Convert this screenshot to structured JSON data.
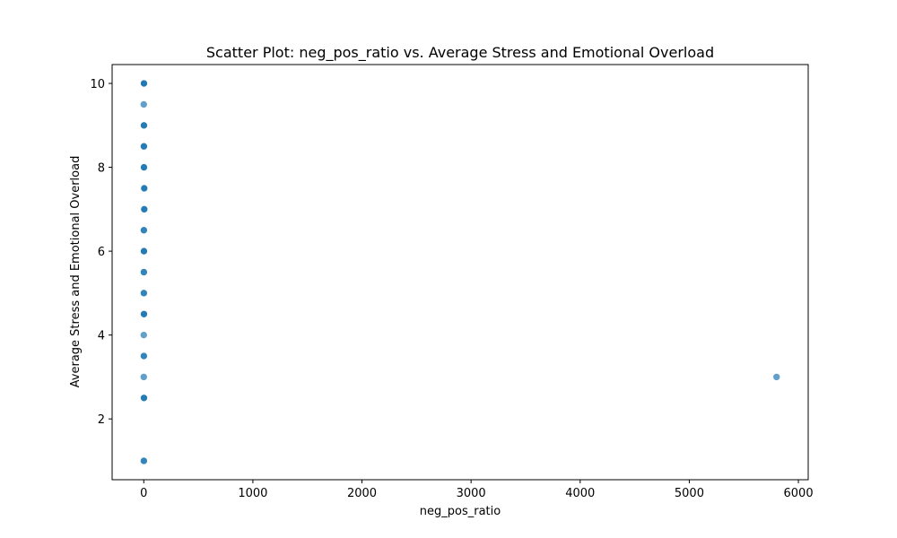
{
  "chart_data": {
    "type": "scatter",
    "title": "Scatter Plot: neg_pos_ratio vs. Average Stress and Emotional Overload",
    "xlabel": "neg_pos_ratio",
    "ylabel": "Average Stress and Emotional Overload",
    "xlim": [
      -290,
      6090
    ],
    "ylim": [
      0.55,
      10.45
    ],
    "xticks": [
      0,
      1000,
      2000,
      3000,
      4000,
      5000,
      6000
    ],
    "xtick_labels": [
      "0",
      "1000",
      "2000",
      "3000",
      "4000",
      "5000",
      "6000"
    ],
    "yticks": [
      2,
      4,
      6,
      8,
      10
    ],
    "ytick_labels": [
      "2",
      "4",
      "6",
      "8",
      "10"
    ],
    "grid": false,
    "marker_color": "#1f77b4",
    "points": [
      {
        "x": 0,
        "y": 10
      },
      {
        "x": 3,
        "y": 10
      },
      {
        "x": 1,
        "y": 10
      },
      {
        "x": 2,
        "y": 10
      },
      {
        "x": 0,
        "y": 9.5
      },
      {
        "x": 0,
        "y": 9
      },
      {
        "x": 1,
        "y": 9
      },
      {
        "x": 2,
        "y": 9
      },
      {
        "x": 0,
        "y": 8.5
      },
      {
        "x": 2,
        "y": 8.5
      },
      {
        "x": 1,
        "y": 8.5
      },
      {
        "x": 0,
        "y": 8
      },
      {
        "x": 1,
        "y": 8
      },
      {
        "x": 2,
        "y": 8
      },
      {
        "x": 0,
        "y": 7.5
      },
      {
        "x": 1,
        "y": 7.5
      },
      {
        "x": 5,
        "y": 7.5
      },
      {
        "x": 0,
        "y": 7
      },
      {
        "x": 2,
        "y": 7
      },
      {
        "x": 5,
        "y": 7
      },
      {
        "x": 0,
        "y": 6.5
      },
      {
        "x": 1,
        "y": 6.5
      },
      {
        "x": 0,
        "y": 6
      },
      {
        "x": 1,
        "y": 6
      },
      {
        "x": 2,
        "y": 6
      },
      {
        "x": 0,
        "y": 5.5
      },
      {
        "x": 1,
        "y": 5.5
      },
      {
        "x": 0,
        "y": 5
      },
      {
        "x": 1,
        "y": 5
      },
      {
        "x": 0,
        "y": 4.5
      },
      {
        "x": 1,
        "y": 4.5
      },
      {
        "x": 2,
        "y": 4.5
      },
      {
        "x": 0,
        "y": 4
      },
      {
        "x": 0,
        "y": 3.5
      },
      {
        "x": 1,
        "y": 3.5
      },
      {
        "x": 0,
        "y": 3
      },
      {
        "x": 0,
        "y": 2.5
      },
      {
        "x": 1,
        "y": 2.5
      },
      {
        "x": 2,
        "y": 2.5
      },
      {
        "x": 0,
        "y": 1
      },
      {
        "x": 1,
        "y": 1
      },
      {
        "x": 5800,
        "y": 3
      }
    ]
  }
}
